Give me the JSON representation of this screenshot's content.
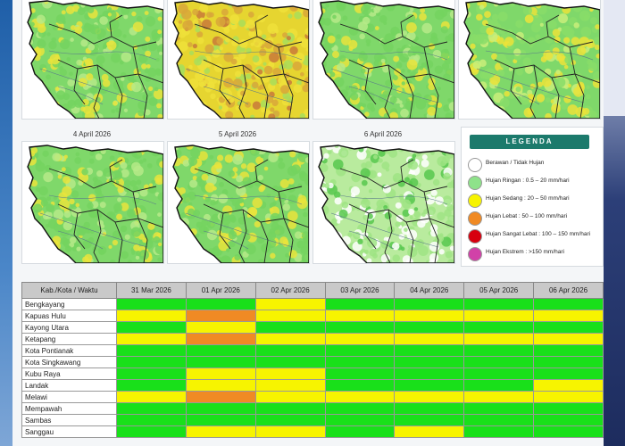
{
  "colors": {
    "white": "#ffffff",
    "light_green": "#8ee28a",
    "yellow": "#f7f400",
    "orange": "#f08a24",
    "red": "#d7000f",
    "magenta": "#d141a8",
    "table_green": "#19e01a",
    "table_yellow": "#f7f400",
    "table_orange": "#f08a24"
  },
  "maps": [
    {
      "label": "",
      "tone": "green"
    },
    {
      "label": "",
      "tone": "yellow"
    },
    {
      "label": "",
      "tone": "green"
    },
    {
      "label": "",
      "tone": "mixed"
    },
    {
      "label": "4 April 2026",
      "tone": "green"
    },
    {
      "label": "5 April 2026",
      "tone": "green"
    },
    {
      "label": "6 April 2026",
      "tone": "light"
    }
  ],
  "legend": {
    "title": "LEGENDA",
    "items": [
      {
        "label": "Berawan / Tidak Hujan",
        "color": "#ffffff"
      },
      {
        "label": "Hujan Ringan        : 0.5 – 20 mm/hari",
        "color": "#8ee28a"
      },
      {
        "label": "Hujan Sedang       : 20 – 50 mm/hari",
        "color": "#f7f400"
      },
      {
        "label": "Hujan Lebat          : 50 – 100 mm/hari",
        "color": "#f08a24"
      },
      {
        "label": "Hujan Sangat Lebat : 100 – 150 mm/hari",
        "color": "#d7000f"
      },
      {
        "label": "Hujan Ekstrem       : >150 mm/hari",
        "color": "#d141a8"
      }
    ]
  },
  "table": {
    "header": "Kab./Kota / Waktu",
    "dates": [
      "31 Mar 2026",
      "01 Apr 2026",
      "02 Apr 2026",
      "03 Apr 2026",
      "04 Apr 2026",
      "05 Apr 2026",
      "06 Apr 2026"
    ],
    "rows": [
      {
        "name": "Bengkayang",
        "cells": [
          "G",
          "G",
          "Y",
          "G",
          "G",
          "G",
          "G"
        ]
      },
      {
        "name": "Kapuas Hulu",
        "cells": [
          "Y",
          "O",
          "Y",
          "Y",
          "Y",
          "Y",
          "Y"
        ]
      },
      {
        "name": "Kayong Utara",
        "cells": [
          "G",
          "Y",
          "G",
          "G",
          "G",
          "G",
          "G"
        ]
      },
      {
        "name": "Ketapang",
        "cells": [
          "Y",
          "O",
          "Y",
          "Y",
          "Y",
          "Y",
          "Y"
        ]
      },
      {
        "name": "Kota Pontianak",
        "cells": [
          "G",
          "G",
          "G",
          "G",
          "G",
          "G",
          "G"
        ]
      },
      {
        "name": "Kota Singkawang",
        "cells": [
          "G",
          "G",
          "G",
          "G",
          "G",
          "G",
          "G"
        ]
      },
      {
        "name": "Kubu Raya",
        "cells": [
          "G",
          "Y",
          "Y",
          "G",
          "G",
          "G",
          "G"
        ]
      },
      {
        "name": "Landak",
        "cells": [
          "G",
          "Y",
          "Y",
          "G",
          "G",
          "G",
          "Y"
        ]
      },
      {
        "name": "Melawi",
        "cells": [
          "Y",
          "O",
          "Y",
          "Y",
          "Y",
          "Y",
          "Y"
        ]
      },
      {
        "name": "Mempawah",
        "cells": [
          "G",
          "G",
          "G",
          "G",
          "G",
          "G",
          "G"
        ]
      },
      {
        "name": "Sambas",
        "cells": [
          "G",
          "G",
          "G",
          "G",
          "G",
          "G",
          "G"
        ]
      },
      {
        "name": "Sanggau",
        "cells": [
          "G",
          "Y",
          "Y",
          "G",
          "Y",
          "G",
          "G"
        ]
      }
    ]
  }
}
